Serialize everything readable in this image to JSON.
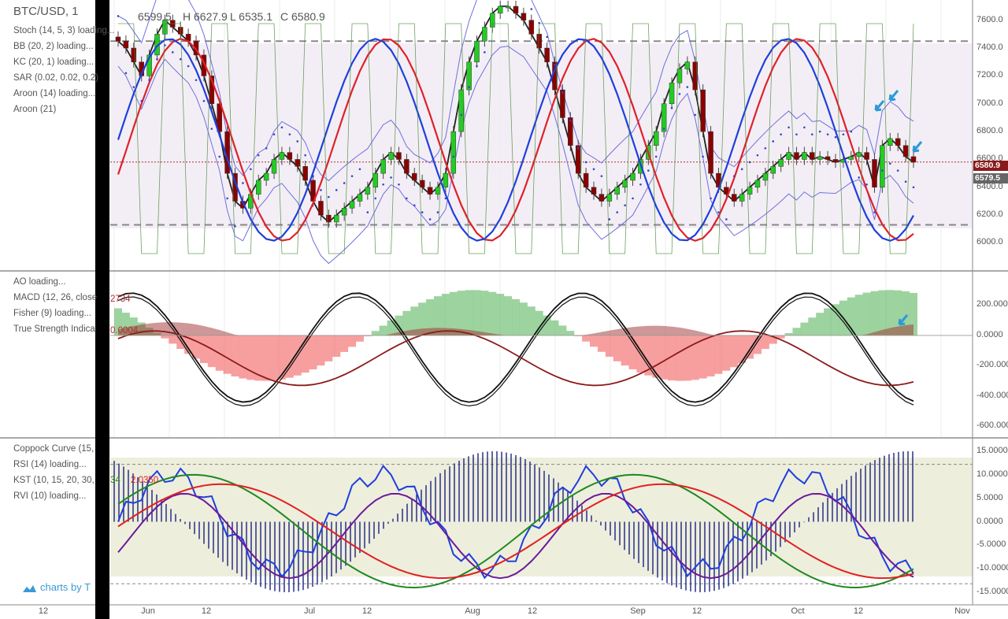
{
  "header": {
    "symbol": "BTC/USD, 1",
    "open": "6599.5",
    "high": "H 6627.9",
    "low": "L 6535.1",
    "close": "C 6580.9"
  },
  "price_pane": {
    "indicators": [
      "Stoch (14, 5, 3) loading...",
      "BB (20, 2) loading...",
      "KC (20, 1) loading...",
      "SAR (0.02, 0.02, 0.2)",
      "Aroon (14) loading...",
      "Aroon (21)"
    ],
    "price_box_close": "6580.9",
    "price_box_prev": "6579.5"
  },
  "osc_pane": {
    "indicators": [
      "AO loading...",
      "MACD (12, 26, close",
      "Fisher (9) loading...",
      "True Strength Indica"
    ],
    "macd_value": "2734",
    "tsi_value": "0.0004"
  },
  "lower_pane": {
    "indicators": [
      "Coppock Curve (15,",
      "RSI (14) loading...",
      "KST (10, 15, 20, 30,",
      "RVI (10) loading..."
    ],
    "kst_value1": "34",
    "kst_value2": "2.0350"
  },
  "brand": "charts by T",
  "colors": {
    "candle_up": "#22cc22",
    "candle_down": "#8b0000",
    "stoch_k": "#1f3fdd",
    "stoch_d": "#e0202a",
    "hist_pos": "#4caf50",
    "hist_neg": "#f05050",
    "ao_fill": "#a03030",
    "axis_text": "#555555",
    "bg_shade": "#f3eef5",
    "close_box": "#8b1a1a",
    "prev_box": "#666666"
  },
  "chart_data": [
    {
      "type": "candlestick",
      "title": "BTC/USD",
      "y_axis_ticks": [
        "7600.0",
        "7400.0",
        "7200.0",
        "7000.0",
        "6800.0",
        "6600.0",
        "6400.0",
        "6200.0",
        "6000.0"
      ],
      "ylim": [
        5850,
        7700
      ],
      "x_ticks": [
        "12",
        "Jun",
        "12",
        "Jul",
        "12",
        "Aug",
        "12",
        "Sep",
        "12",
        "Oct",
        "12",
        "Nov"
      ],
      "horizontal_levels": [
        7450,
        6130
      ],
      "close_series": [
        7450,
        7400,
        7300,
        7200,
        7350,
        7500,
        7600,
        7550,
        7500,
        7450,
        7350,
        7200,
        7000,
        6800,
        6500,
        6300,
        6250,
        6350,
        6450,
        6500,
        6600,
        6650,
        6600,
        6550,
        6450,
        6300,
        6200,
        6150,
        6200,
        6250,
        6300,
        6350,
        6400,
        6500,
        6600,
        6650,
        6600,
        6500,
        6450,
        6400,
        6350,
        6400,
        6500,
        6800,
        7100,
        7300,
        7450,
        7550,
        7650,
        7700,
        7700,
        7650,
        7600,
        7500,
        7400,
        7300,
        7100,
        6900,
        6700,
        6500,
        6400,
        6350,
        6300,
        6350,
        6400,
        6450,
        6500,
        6600,
        6700,
        6800,
        7000,
        7150,
        7250,
        7300,
        7100,
        6800,
        6500,
        6400,
        6350,
        6300,
        6350,
        6400,
        6450,
        6500,
        6550,
        6600,
        6650,
        6600,
        6650,
        6600,
        6620,
        6600,
        6580,
        6600,
        6620,
        6650,
        6600,
        6400,
        6700,
        6750,
        6700,
        6620,
        6580
      ]
    },
    {
      "type": "line",
      "title": "MACD / AO / Fisher / TSI",
      "y_axis_ticks": [
        "200.0000",
        "0.0000",
        "-200.0000",
        "-400.0000",
        "-600.0000"
      ],
      "ylim": [
        -650,
        400
      ]
    },
    {
      "type": "line",
      "title": "Coppock / RSI / KST / RVI",
      "y_axis_ticks": [
        "15.0000",
        "10.0000",
        "5.0000",
        "0.0000",
        "-5.0000",
        "-10.0000",
        "-15.0000"
      ],
      "ylim": [
        -17,
        17
      ]
    }
  ]
}
